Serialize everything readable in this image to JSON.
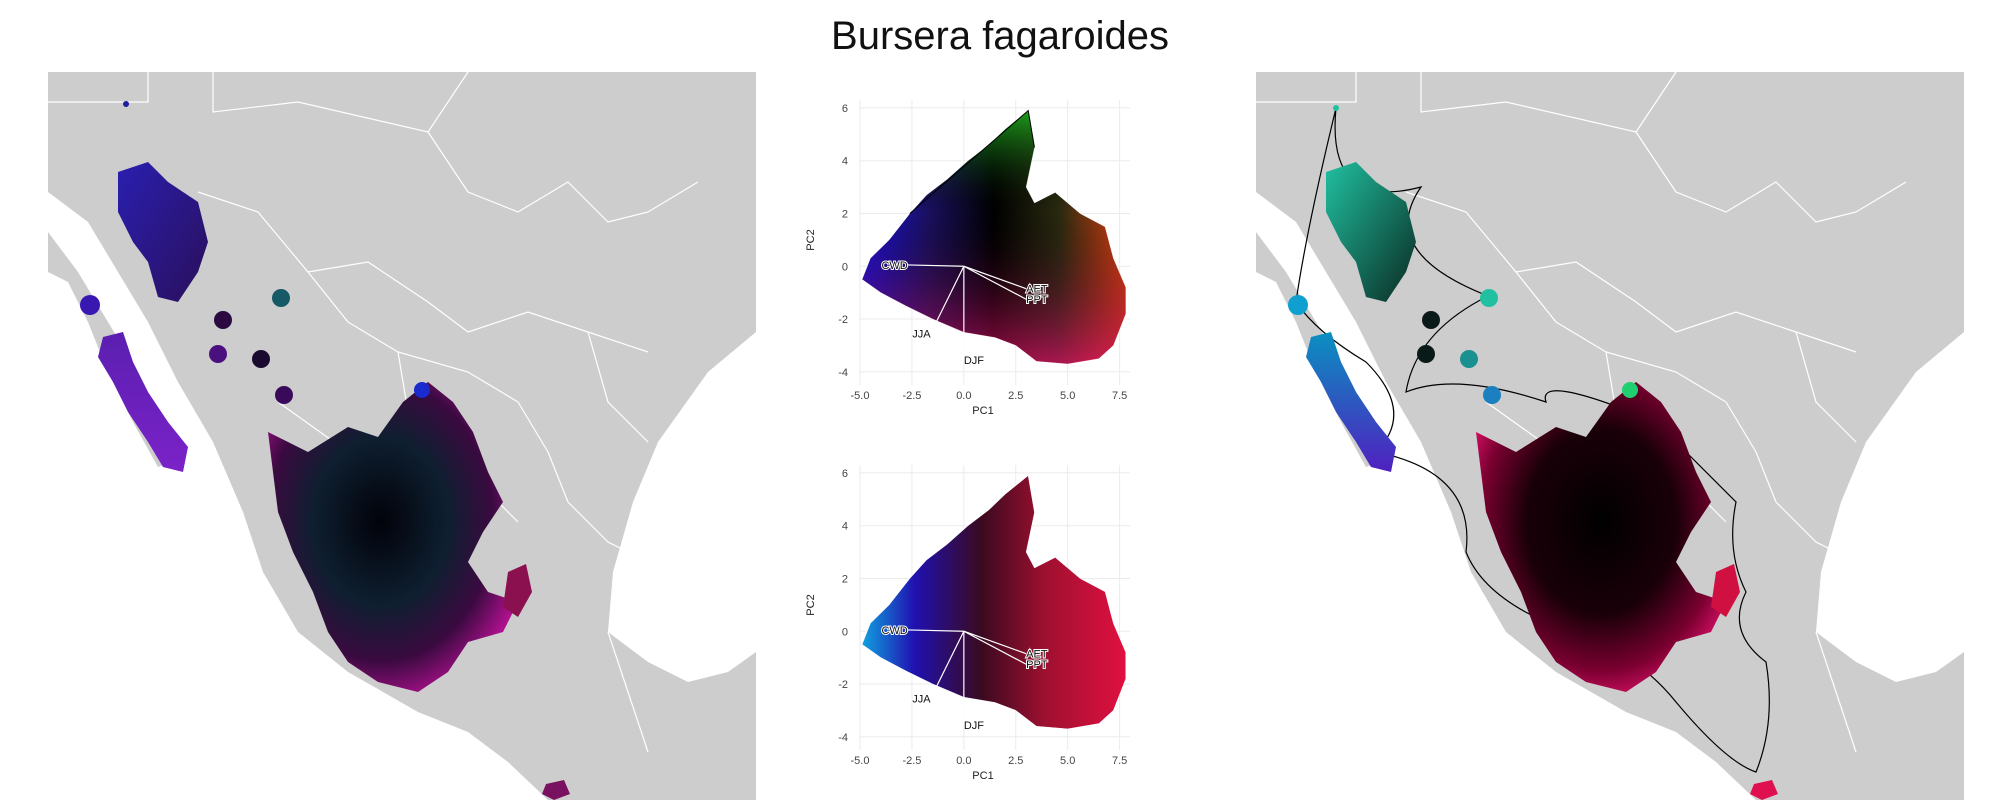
{
  "title": "Bursera fagaroides",
  "colors": {
    "land": "#cdcdcd",
    "border": "#ffffff",
    "background": "#ffffff"
  },
  "pca_plots": [
    {
      "id": "pca-top",
      "type": "scatter",
      "xlabel": "PC1",
      "ylabel": "PC2",
      "xlim": [
        -5.0,
        8.0
      ],
      "ylim": [
        -4.5,
        6.3
      ],
      "x_ticks": [
        "-5.0",
        "-2.5",
        "0.0",
        "2.5",
        "5.0",
        "7.5"
      ],
      "y_ticks": [
        "-4",
        "-2",
        "0",
        "2",
        "4",
        "6"
      ],
      "grid": true,
      "loadings": [
        {
          "label": "CWD",
          "x": -2.7,
          "y": 0.05
        },
        {
          "label": "AET",
          "x": 3.0,
          "y": -0.85
        },
        {
          "label": "PPT",
          "x": 3.0,
          "y": -1.25
        },
        {
          "label": "JJA",
          "x": -1.6,
          "y": -2.55
        },
        {
          "label": "DJF",
          "x": 0.0,
          "y": -3.55
        }
      ]
    },
    {
      "id": "pca-bottom",
      "type": "scatter",
      "xlabel": "PC1",
      "ylabel": "PC2",
      "xlim": [
        -5.0,
        8.0
      ],
      "ylim": [
        -4.5,
        6.3
      ],
      "x_ticks": [
        "-5.0",
        "-2.5",
        "0.0",
        "2.5",
        "5.0",
        "7.5"
      ],
      "y_ticks": [
        "-4",
        "-2",
        "0",
        "2",
        "4",
        "6"
      ],
      "grid": true,
      "loadings": [
        {
          "label": "CWD",
          "x": -2.7,
          "y": 0.05
        },
        {
          "label": "AET",
          "x": 3.0,
          "y": -0.85
        },
        {
          "label": "PPT",
          "x": 3.0,
          "y": -1.25
        },
        {
          "label": "JJA",
          "x": -1.6,
          "y": -2.55
        },
        {
          "label": "DJF",
          "x": 0.0,
          "y": -3.55
        }
      ]
    }
  ]
}
